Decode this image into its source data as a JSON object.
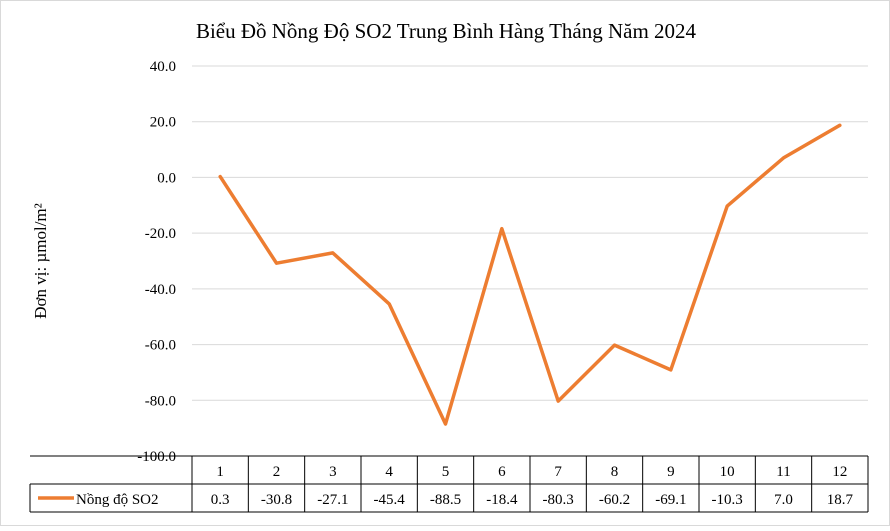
{
  "colors": {
    "series": "#ED7D31",
    "grid": "#D9D9D9",
    "table_border": "#000000",
    "background": "#FFFFFF"
  },
  "chart_data": {
    "type": "line",
    "title": "Biểu Đồ Nồng Độ SO2 Trung Bình Hàng Tháng Năm 2024",
    "xlabel": "",
    "ylabel": "Đơn vị: µmol/m²",
    "categories": [
      "1",
      "2",
      "3",
      "4",
      "5",
      "6",
      "7",
      "8",
      "9",
      "10",
      "11",
      "12"
    ],
    "series": [
      {
        "name": "Nồng độ SO2",
        "values": [
          0.3,
          -30.8,
          -27.1,
          -45.4,
          -88.5,
          -18.4,
          -80.3,
          -60.2,
          -69.1,
          -10.3,
          7.0,
          18.7
        ],
        "value_labels": [
          "0.3",
          "-30.8",
          "-27.1",
          "-45.4",
          "-88.5",
          "-18.4",
          "-80.3",
          "-60.2",
          "-69.1",
          "-10.3",
          "7.0",
          "18.7"
        ]
      }
    ],
    "ylim": [
      -100,
      40
    ],
    "yticks": [
      "40.0",
      "20.0",
      "0.0",
      "-20.0",
      "-40.0",
      "-60.0",
      "-80.0",
      "-100.0"
    ],
    "grid": true,
    "legend": "data-table"
  }
}
